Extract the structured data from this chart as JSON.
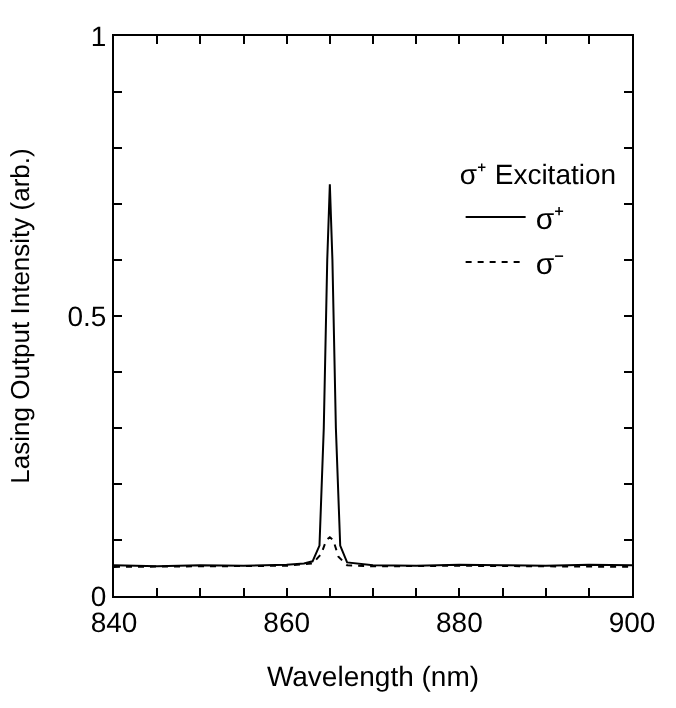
{
  "chart_data": {
    "type": "line",
    "xlabel": "Wavelength (nm)",
    "ylabel": "Lasing Output Intensity (arb.)",
    "legend_title": "σ⁺ Excitation",
    "xlim": [
      840,
      900
    ],
    "xticks": [
      840,
      {
        "value": 845,
        "label": null
      },
      {
        "value": 850,
        "label": null
      },
      {
        "value": 855,
        "label": null
      },
      860,
      {
        "value": 865,
        "label": null
      },
      {
        "value": 870,
        "label": null
      },
      {
        "value": 875,
        "label": null
      },
      880,
      {
        "value": 885,
        "label": null
      },
      {
        "value": 890,
        "label": null
      },
      {
        "value": 895,
        "label": null
      },
      900
    ],
    "ylim": [
      0,
      1
    ],
    "yticks": [
      0,
      {
        "value": 0.1,
        "label": null
      },
      {
        "value": 0.2,
        "label": null
      },
      {
        "value": 0.3,
        "label": null
      },
      {
        "value": 0.4,
        "label": null
      },
      0.5,
      {
        "value": 0.6,
        "label": null
      },
      {
        "value": 0.7,
        "label": null
      },
      {
        "value": 0.8,
        "label": null
      },
      {
        "value": 0.9,
        "label": null
      },
      1
    ],
    "legend": "top right",
    "marker": "none",
    "series": [
      {
        "name": "σ⁺",
        "color": "#000000",
        "line_style": "solid",
        "x": [
          840,
          845,
          850,
          855,
          860,
          862,
          863,
          863.8,
          864.3,
          864.7,
          865,
          865.3,
          865.7,
          866.2,
          867,
          870,
          875,
          880,
          885,
          890,
          895,
          900
        ],
        "values": [
          0.055,
          0.053,
          0.055,
          0.054,
          0.056,
          0.058,
          0.062,
          0.09,
          0.3,
          0.6,
          0.735,
          0.6,
          0.3,
          0.09,
          0.06,
          0.055,
          0.054,
          0.056,
          0.055,
          0.054,
          0.056,
          0.055
        ]
      },
      {
        "name": "σ⁻",
        "color": "#000000",
        "line_style": "dotted",
        "x": [
          840,
          850,
          860,
          863,
          864,
          864.6,
          865,
          865.4,
          866,
          867,
          870,
          880,
          890,
          900
        ],
        "values": [
          0.052,
          0.053,
          0.054,
          0.058,
          0.075,
          0.1,
          0.105,
          0.1,
          0.07,
          0.055,
          0.053,
          0.054,
          0.053,
          0.052
        ]
      }
    ]
  }
}
